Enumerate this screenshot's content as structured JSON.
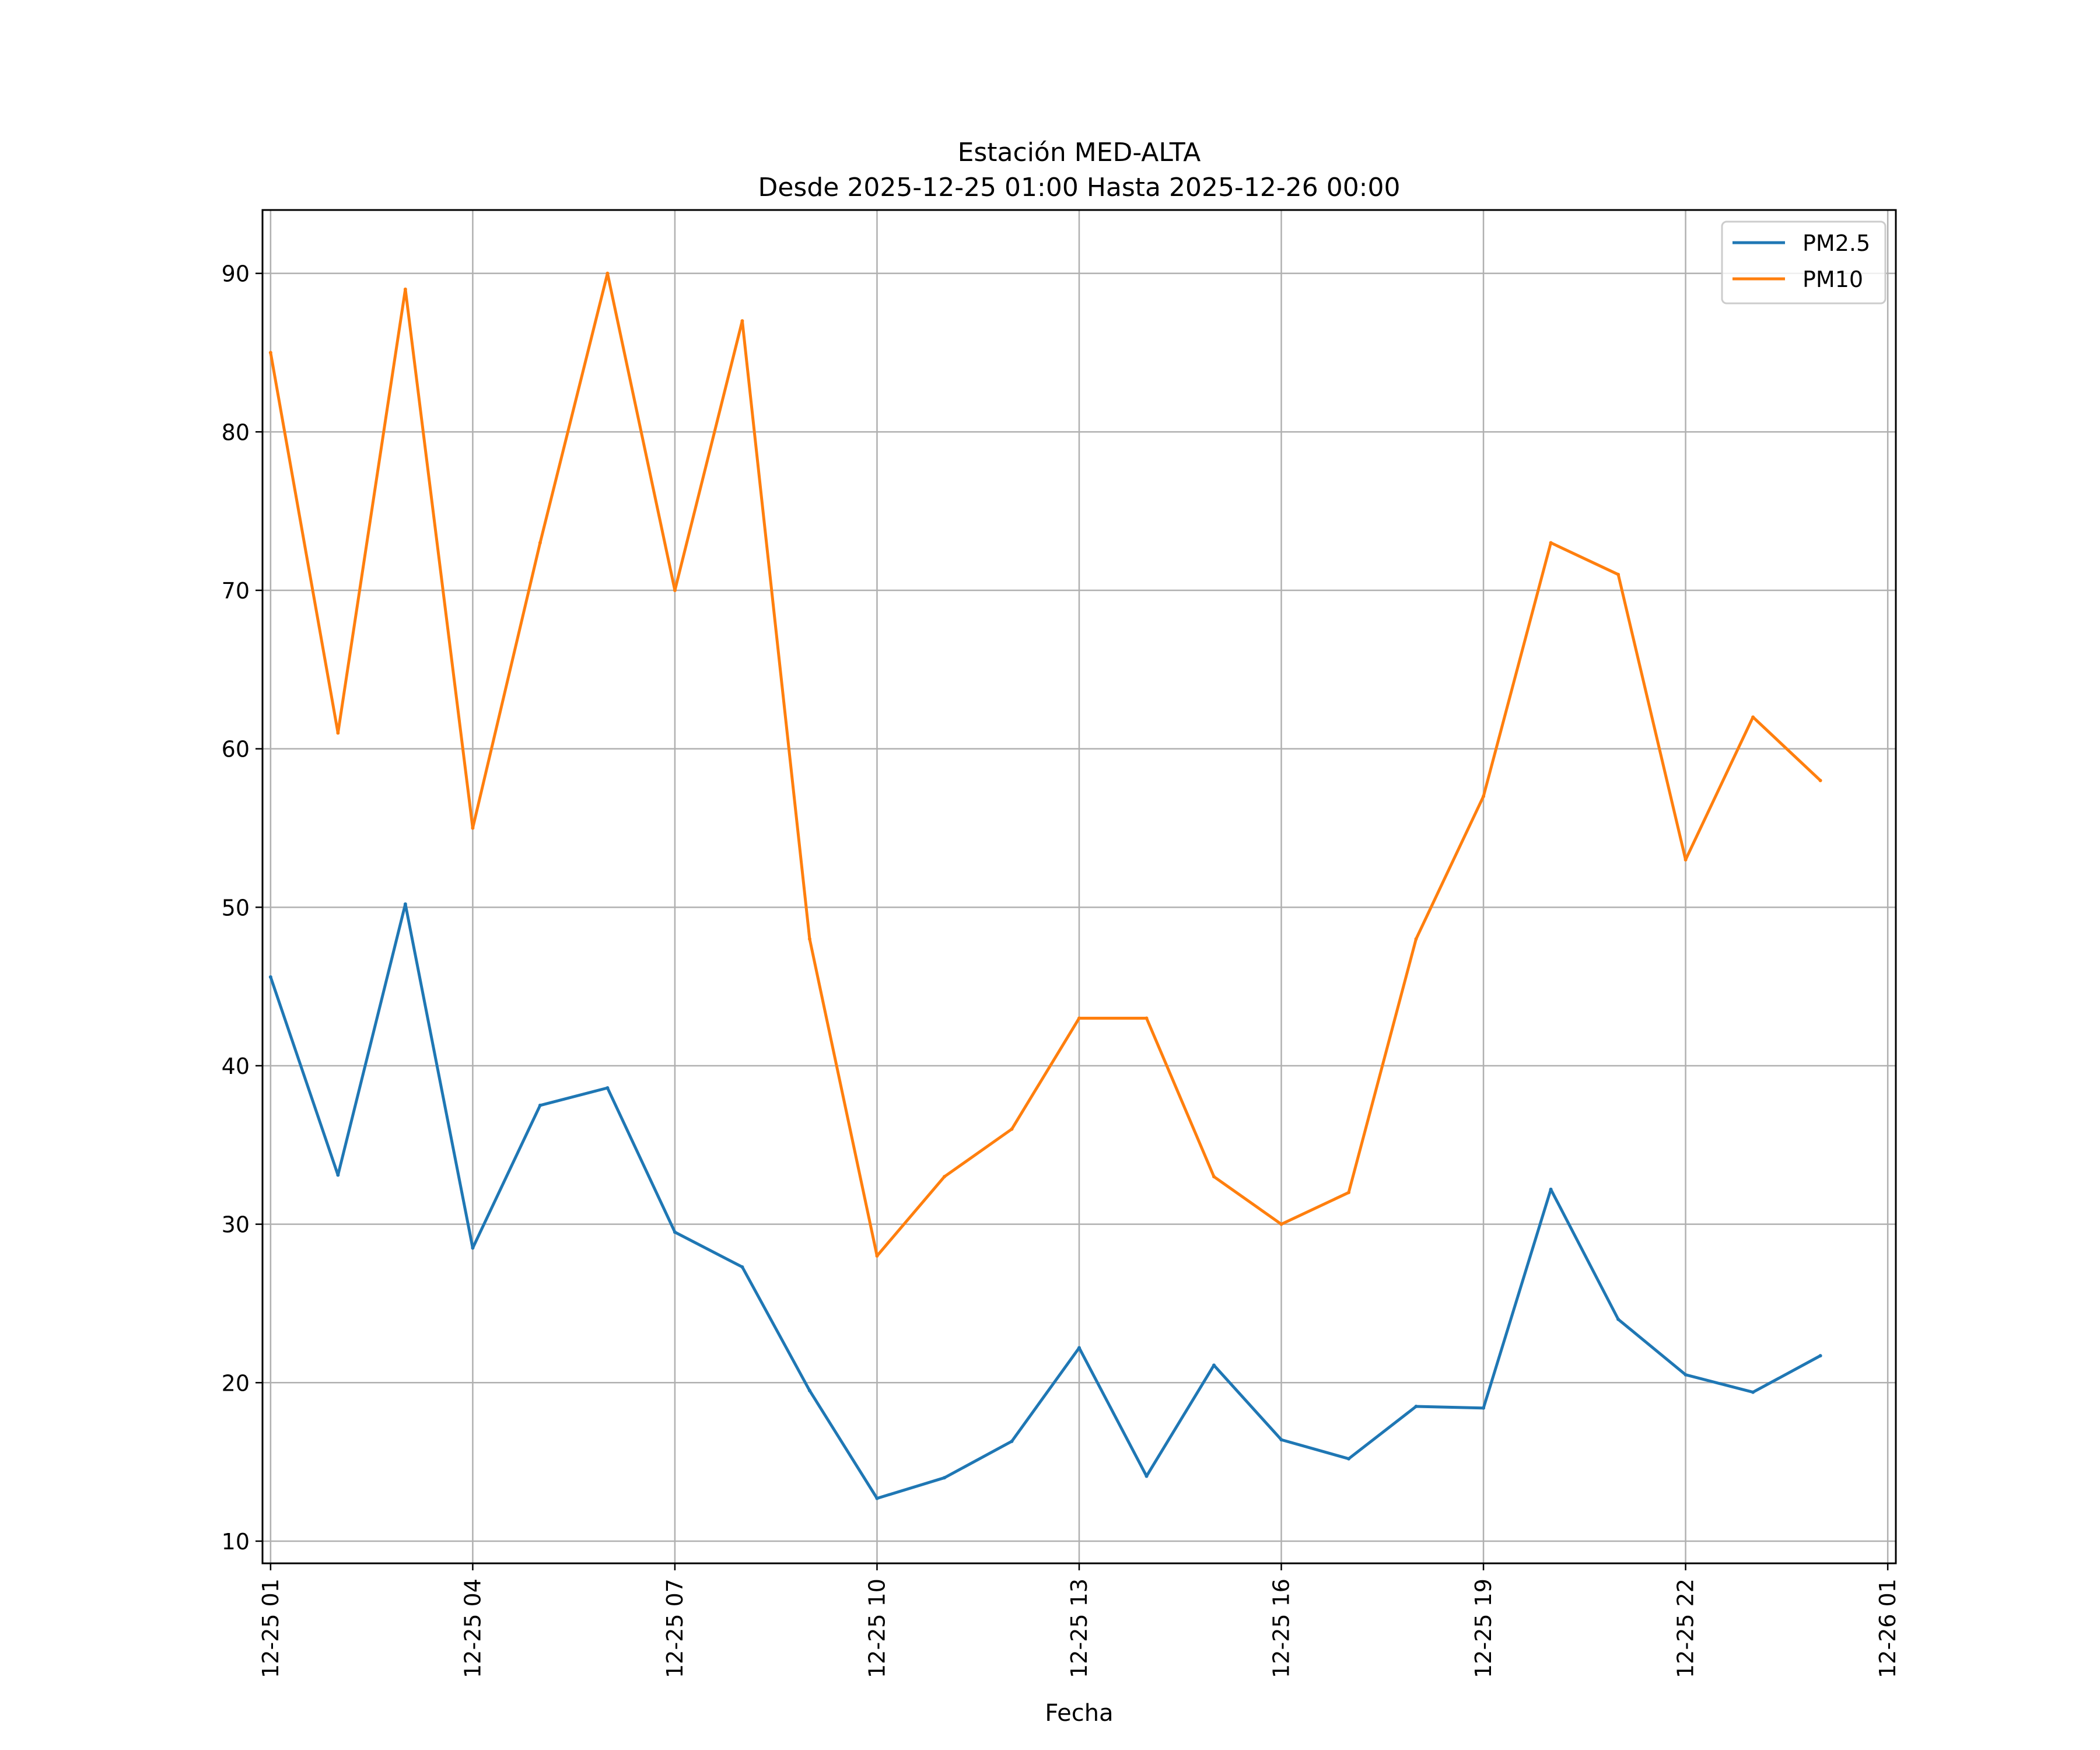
{
  "chart_data": {
    "type": "line",
    "title": [
      "Estación MED-ALTA",
      "Desde 2025-12-25 01:00 Hasta 2025-12-26 00:00"
    ],
    "xlabel": "Fecha",
    "ylabel": "",
    "ylim": [
      8.6,
      94
    ],
    "xlim_hours": [
      -0.12,
      24.12
    ],
    "grid": true,
    "legend_position": "top-right",
    "x_hours": [
      0,
      1,
      2,
      3,
      4,
      5,
      6,
      7,
      8,
      9,
      10,
      11,
      12,
      13,
      14,
      15,
      16,
      17,
      18,
      19,
      20,
      21,
      22,
      23
    ],
    "yticks": [
      10,
      20,
      30,
      40,
      50,
      60,
      70,
      80,
      90
    ],
    "xticks": [
      {
        "hour": 0,
        "label": "12-25 01"
      },
      {
        "hour": 3,
        "label": "12-25 04"
      },
      {
        "hour": 6,
        "label": "12-25 07"
      },
      {
        "hour": 9,
        "label": "12-25 10"
      },
      {
        "hour": 12,
        "label": "12-25 13"
      },
      {
        "hour": 15,
        "label": "12-25 16"
      },
      {
        "hour": 18,
        "label": "12-25 19"
      },
      {
        "hour": 21,
        "label": "12-25 22"
      },
      {
        "hour": 24,
        "label": "12-26 01"
      }
    ],
    "series": [
      {
        "name": "PM2.5",
        "color": "#1f77b4",
        "values": [
          45.6,
          33.1,
          50.2,
          28.5,
          37.5,
          38.6,
          29.5,
          27.3,
          19.5,
          12.7,
          14.0,
          16.3,
          22.2,
          14.1,
          21.1,
          16.4,
          15.2,
          18.5,
          18.4,
          32.2,
          24.0,
          20.5,
          19.4,
          21.7
        ]
      },
      {
        "name": "PM10",
        "color": "#ff7f0e",
        "values": [
          85,
          61,
          89,
          55,
          73,
          90,
          70,
          87,
          48,
          28,
          33,
          36,
          43,
          43,
          33,
          30,
          32,
          48,
          57,
          73,
          71,
          53,
          62,
          58
        ]
      }
    ]
  }
}
